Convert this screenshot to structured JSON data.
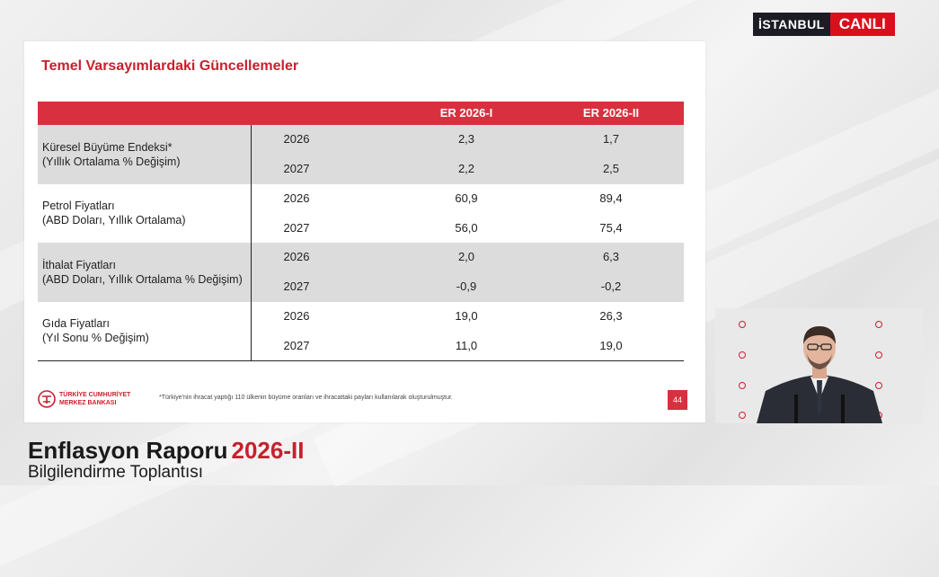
{
  "broadcast": {
    "city": "İSTANBUL",
    "live": "CANLI"
  },
  "slide": {
    "title": "Temel Varsayımlardaki Güncellemeler",
    "columns": [
      "ER 2026-I",
      "ER 2026-II"
    ],
    "rows": [
      {
        "label_line1": "Küresel Büyüme Endeksi*",
        "label_line2": "(Yıllık Ortalama % Değişim)",
        "values": [
          {
            "year": "2026",
            "er1": "2,3",
            "er2": "1,7"
          },
          {
            "year": "2027",
            "er1": "2,2",
            "er2": "2,5"
          }
        ]
      },
      {
        "label_line1": "Petrol Fiyatları",
        "label_line2": "(ABD Doları, Yıllık Ortalama)",
        "values": [
          {
            "year": "2026",
            "er1": "60,9",
            "er2": "89,4"
          },
          {
            "year": "2027",
            "er1": "56,0",
            "er2": "75,4"
          }
        ]
      },
      {
        "label_line1": "İthalat Fiyatları",
        "label_line2": "(ABD Doları, Yıllık Ortalama % Değişim)",
        "values": [
          {
            "year": "2026",
            "er1": "2,0",
            "er2": "6,3"
          },
          {
            "year": "2027",
            "er1": "-0,9",
            "er2": "-0,2"
          }
        ]
      },
      {
        "label_line1": "Gıda Fiyatları",
        "label_line2": "(Yıl Sonu % Değişim)",
        "values": [
          {
            "year": "2026",
            "er1": "19,0",
            "er2": "26,3"
          },
          {
            "year": "2027",
            "er1": "11,0",
            "er2": "19,0"
          }
        ]
      }
    ],
    "logo_line1": "TÜRKİYE CUMHURİYET",
    "logo_line2": "MERKEZ BANKASI",
    "footnote": "*Türkiye'nin ihracat yaptığı 110 ülkenin büyüme oranları ve ihracattaki payları kullanılarak oluşturulmuştur.",
    "page_number": "44"
  },
  "lower_third": {
    "title": "Enflasyon Raporu",
    "title_accent": "2026-II",
    "subtitle": "Bilgilendirme Toplantısı"
  },
  "colors": {
    "accent": "#d8303e",
    "live_badge": "#d8101c"
  }
}
